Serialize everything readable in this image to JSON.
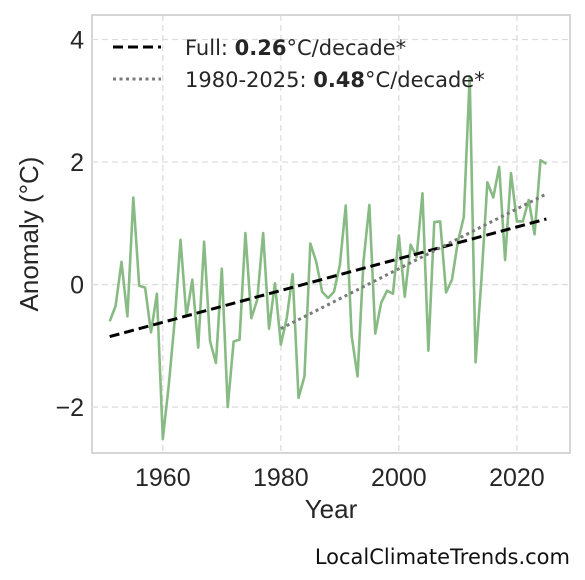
{
  "chart_data": {
    "type": "line",
    "xlabel": "Year",
    "ylabel": "Anomaly (°C)",
    "xlim": [
      1948,
      2029
    ],
    "ylim": [
      -2.75,
      4.4
    ],
    "x_ticks": [
      1960,
      1980,
      2000,
      2020
    ],
    "y_ticks": [
      4,
      2,
      0,
      -2
    ],
    "y_tick_labels": [
      "4",
      "2",
      "0",
      "−2"
    ],
    "grid": true,
    "legend_position": "top-left",
    "series": [
      {
        "style": "line",
        "color": "#88bb84",
        "x": [
          1951,
          1952,
          1953,
          1954,
          1955,
          1956,
          1957,
          1958,
          1959,
          1960,
          1961,
          1962,
          1963,
          1964,
          1965,
          1966,
          1967,
          1968,
          1969,
          1970,
          1971,
          1972,
          1973,
          1974,
          1975,
          1976,
          1977,
          1978,
          1979,
          1980,
          1981,
          1982,
          1983,
          1984,
          1985,
          1986,
          1987,
          1988,
          1989,
          1990,
          1991,
          1992,
          1993,
          1994,
          1995,
          1996,
          1997,
          1998,
          1999,
          2000,
          2001,
          2002,
          2003,
          2004,
          2005,
          2006,
          2007,
          2008,
          2009,
          2010,
          2011,
          2012,
          2013,
          2014,
          2015,
          2016,
          2017,
          2018,
          2019,
          2020,
          2021,
          2022,
          2023,
          2024,
          2025
        ],
        "values": [
          -0.6,
          -0.35,
          0.37,
          -0.52,
          1.42,
          -0.02,
          -0.05,
          -0.78,
          -0.15,
          -2.52,
          -1.65,
          -0.6,
          0.73,
          -0.52,
          0.08,
          -1.03,
          0.7,
          -0.92,
          -1.28,
          0.26,
          -2.0,
          -0.93,
          -0.9,
          0.84,
          -0.55,
          -0.25,
          0.84,
          -0.72,
          0.02,
          -0.98,
          -0.55,
          0.17,
          -1.85,
          -1.5,
          0.67,
          0.37,
          -0.12,
          -0.22,
          -0.12,
          0.32,
          1.29,
          -0.84,
          -1.5,
          0.37,
          1.3,
          -0.8,
          -0.3,
          -0.1,
          -0.15,
          0.8,
          -0.2,
          0.65,
          0.45,
          1.49,
          -1.08,
          1.02,
          1.03,
          -0.13,
          0.08,
          0.7,
          1.1,
          3.4,
          -1.27,
          0.1,
          1.67,
          1.42,
          1.92,
          0.4,
          1.82,
          1.03,
          1.03,
          1.38,
          0.82,
          2.03,
          1.97
        ]
      },
      {
        "name": "Full",
        "style": "dashed",
        "color": "#000000",
        "x": [
          1951,
          2025
        ],
        "values": [
          -0.85,
          1.07
        ]
      },
      {
        "name": "1980-2025",
        "style": "dotted",
        "color": "#7a7a7a",
        "x": [
          1980,
          2025
        ],
        "values": [
          -0.72,
          1.48
        ]
      }
    ],
    "legend": [
      {
        "prefix": "Full: ",
        "value": "0.26",
        "suffix": "°C/decade*",
        "style": "dashed",
        "color": "#000000"
      },
      {
        "prefix": "1980-2025: ",
        "value": "0.48",
        "suffix": "°C/decade*",
        "style": "dotted",
        "color": "#7a7a7a"
      }
    ]
  },
  "credit": "LocalClimateTrends.com"
}
